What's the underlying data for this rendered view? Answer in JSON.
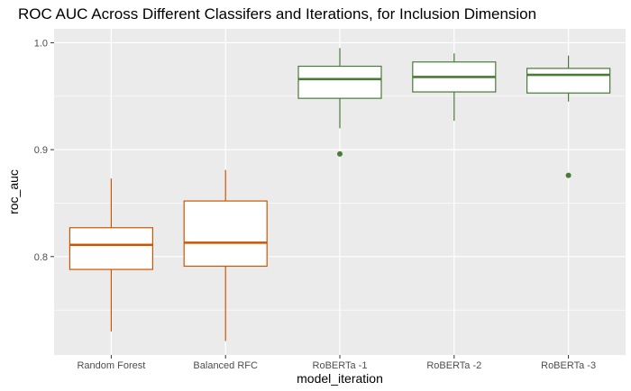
{
  "chart_data": {
    "type": "boxplot",
    "title": "ROC AUC Across Different Classifers and Iterations, for Inclusion Dimension",
    "xlabel": "model_iteration",
    "ylabel": "roc_auc",
    "ylim": [
      0.708,
      1.013
    ],
    "yticks": [
      0.8,
      0.9,
      1.0
    ],
    "ytick_labels": [
      "0.8",
      "0.9",
      "1.0"
    ],
    "grid": true,
    "categories": [
      "Random Forest",
      "Balanced RFC",
      "RoBERTa -1",
      "RoBERTa -2",
      "RoBERTa -3"
    ],
    "boxes": [
      {
        "category": "Random Forest",
        "whisker_low": 0.73,
        "q1": 0.788,
        "median": 0.811,
        "q3": 0.827,
        "whisker_high": 0.873,
        "outliers": [],
        "color": "#cc5500"
      },
      {
        "category": "Balanced RFC",
        "whisker_low": 0.721,
        "q1": 0.791,
        "median": 0.813,
        "q3": 0.852,
        "whisker_high": 0.881,
        "outliers": [],
        "color": "#cc5500"
      },
      {
        "category": "RoBERTa -1",
        "whisker_low": 0.92,
        "q1": 0.948,
        "median": 0.966,
        "q3": 0.978,
        "whisker_high": 0.995,
        "outliers": [
          0.896
        ],
        "color": "#4a7a3a"
      },
      {
        "category": "RoBERTa -2",
        "whisker_low": 0.927,
        "q1": 0.954,
        "median": 0.968,
        "q3": 0.982,
        "whisker_high": 0.99,
        "outliers": [],
        "color": "#4a7a3a"
      },
      {
        "category": "RoBERTa -3",
        "whisker_low": 0.945,
        "q1": 0.953,
        "median": 0.97,
        "q3": 0.976,
        "whisker_high": 0.988,
        "outliers": [
          0.876
        ],
        "color": "#4a7a3a"
      }
    ],
    "colors": {
      "panel_background": "#ebebeb",
      "grid": "#ffffff",
      "box_fill": "#ffffff"
    }
  }
}
